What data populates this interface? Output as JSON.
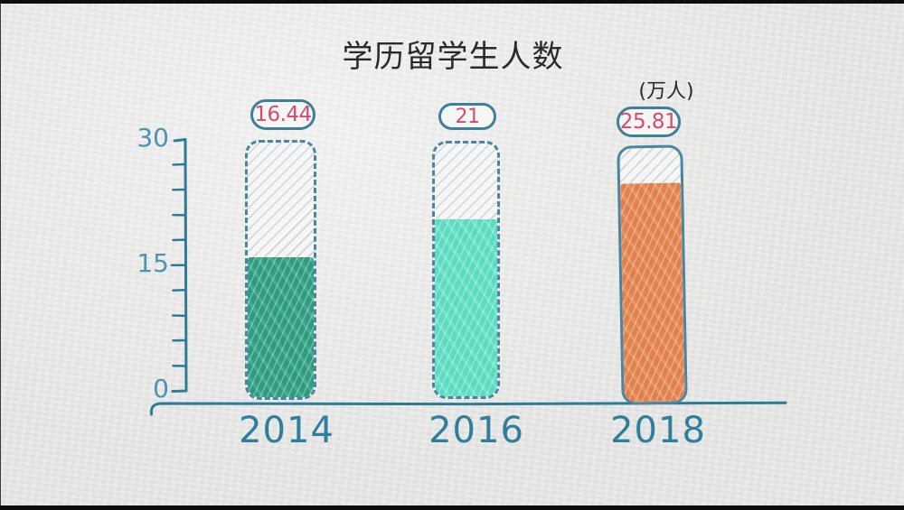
{
  "page": {
    "background_color": "#e9e9e8",
    "letterbox_color": "#0d0d0d"
  },
  "chart_data": {
    "type": "bar",
    "style": "hand-drawn-crayon",
    "title": "学历留学生人数",
    "unit_label": "(万人)",
    "categories": [
      "2014",
      "2016",
      "2018"
    ],
    "values": [
      16.44,
      21,
      25.81
    ],
    "value_labels": [
      "16.44",
      "21",
      "25.81"
    ],
    "ylim": [
      0,
      30
    ],
    "ytick_labels": [
      "30",
      "15",
      "0"
    ],
    "minor_tick_step": 3,
    "grid": false,
    "legend": "none",
    "bar_colors": [
      "#2fa183",
      "#5ee3c6",
      "#e8854e"
    ],
    "empty_tube_pattern": "diagonal-hatch",
    "axis_color": "#2e7b98",
    "tick_label_color": "#4e93af",
    "category_label_color": "#2f7e9c",
    "value_label_color": "#d84a6e",
    "badge_border_color": "#3d7f9d",
    "title_color": "#2a2a2e"
  }
}
